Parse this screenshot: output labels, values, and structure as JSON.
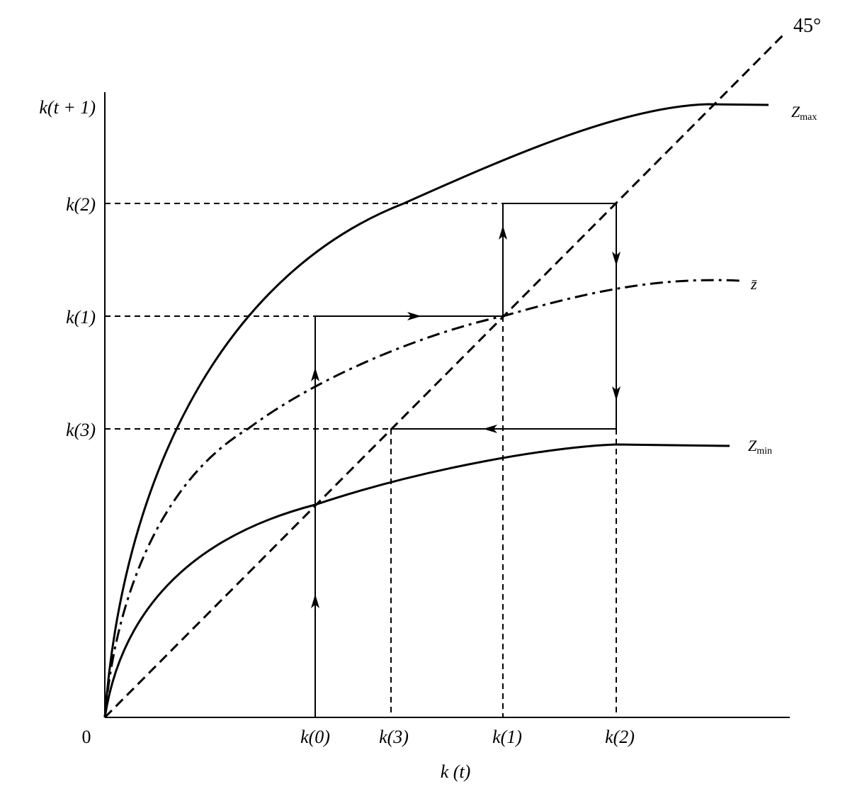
{
  "diagonal_label": "45°",
  "axes": {
    "y_label": "k(t + 1)",
    "x_label": "k (t)",
    "origin": "0"
  },
  "y_ticks": [
    "k(2)",
    "k(1)",
    "k(3)"
  ],
  "x_ticks": [
    "k(0)",
    "k(3)",
    "k(1)",
    "k(2)"
  ],
  "curves": [
    {
      "label": "Z",
      "subscript": "max"
    },
    {
      "label": "z̄"
    },
    {
      "label": "Z",
      "subscript": "min"
    }
  ]
}
